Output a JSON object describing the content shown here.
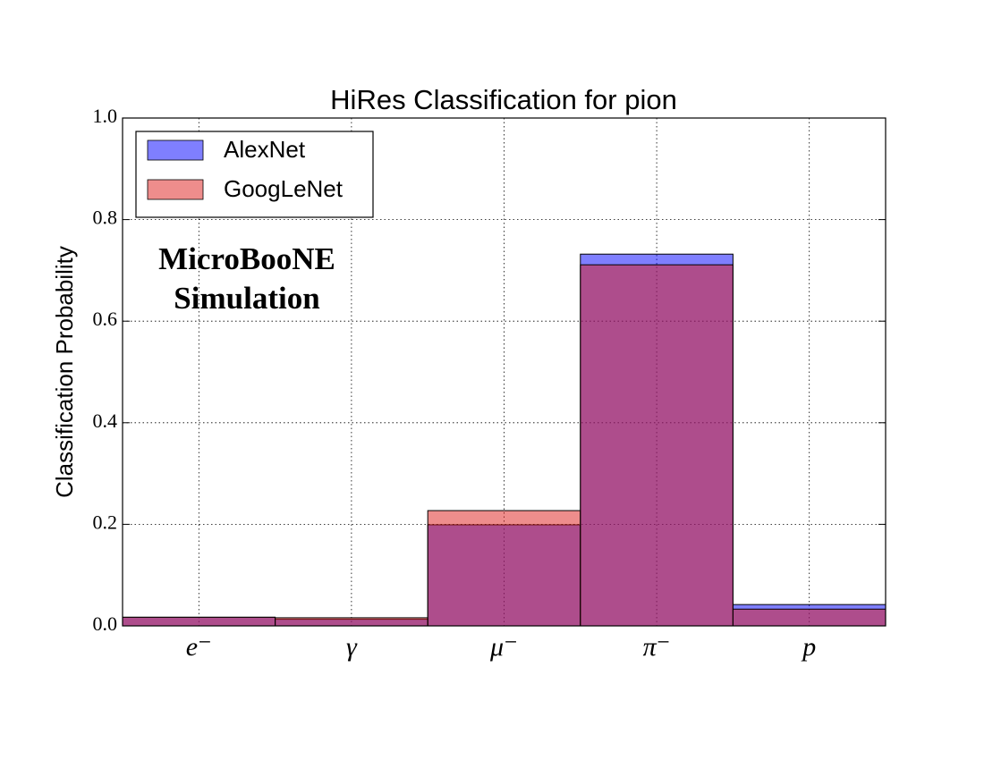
{
  "chart_data": {
    "type": "bar",
    "title": "HiRes Classification for pion",
    "ylabel": "Classification Probability",
    "annotation": [
      "MicroBooNE",
      "Simulation"
    ],
    "categories": [
      "e⁻",
      "γ",
      "μ⁻",
      "π⁻",
      "p"
    ],
    "series": [
      {
        "name": "AlexNet",
        "color": "#0000ff",
        "values": [
          0.017,
          0.013,
          0.199,
          0.732,
          0.042
        ]
      },
      {
        "name": "GoogLeNet",
        "color": "#dd1c1a",
        "values": [
          0.017,
          0.016,
          0.227,
          0.711,
          0.033
        ]
      }
    ],
    "alpha": 0.5,
    "ylim": [
      0,
      1
    ],
    "yticks": [
      {
        "value": 0,
        "label": "0.0"
      },
      0.2,
      0.4,
      0.6,
      0.8,
      {
        "value": 1,
        "label": "1.0"
      }
    ],
    "grid": true,
    "legend": "upper-left"
  }
}
